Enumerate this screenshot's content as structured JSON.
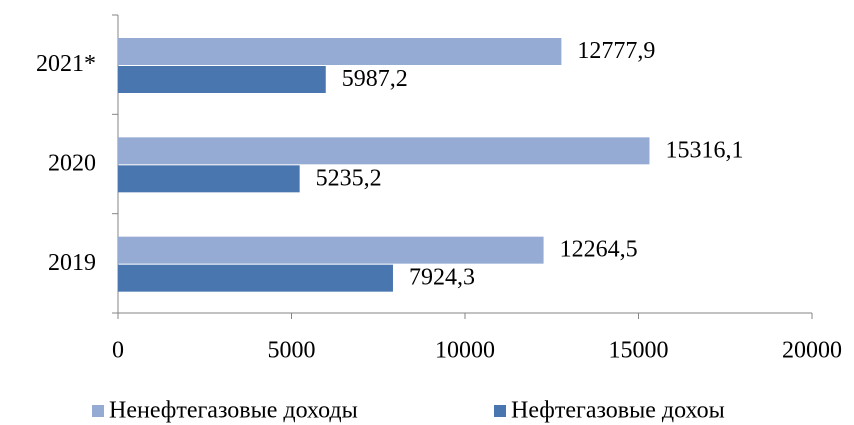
{
  "chart_data": {
    "type": "barh",
    "categories": [
      "2019",
      "2020",
      "2021*"
    ],
    "series": [
      {
        "name": "Ненефтегазовые доходы",
        "color": "#95abd4",
        "values": [
          12264.5,
          15316.1,
          12777.9
        ],
        "value_labels": [
          "12264,5",
          "15316,1",
          "12777,9"
        ]
      },
      {
        "name": "Нефтегазовые дохоы",
        "color": "#4a76b0",
        "values": [
          7924.3,
          5235.2,
          5987.2
        ],
        "value_labels": [
          "7924,3",
          "5235,2",
          "5987,2"
        ]
      }
    ],
    "xlim": [
      0,
      20000
    ],
    "xticks": [
      0,
      5000,
      10000,
      15000,
      20000
    ],
    "legend": "bottom"
  }
}
